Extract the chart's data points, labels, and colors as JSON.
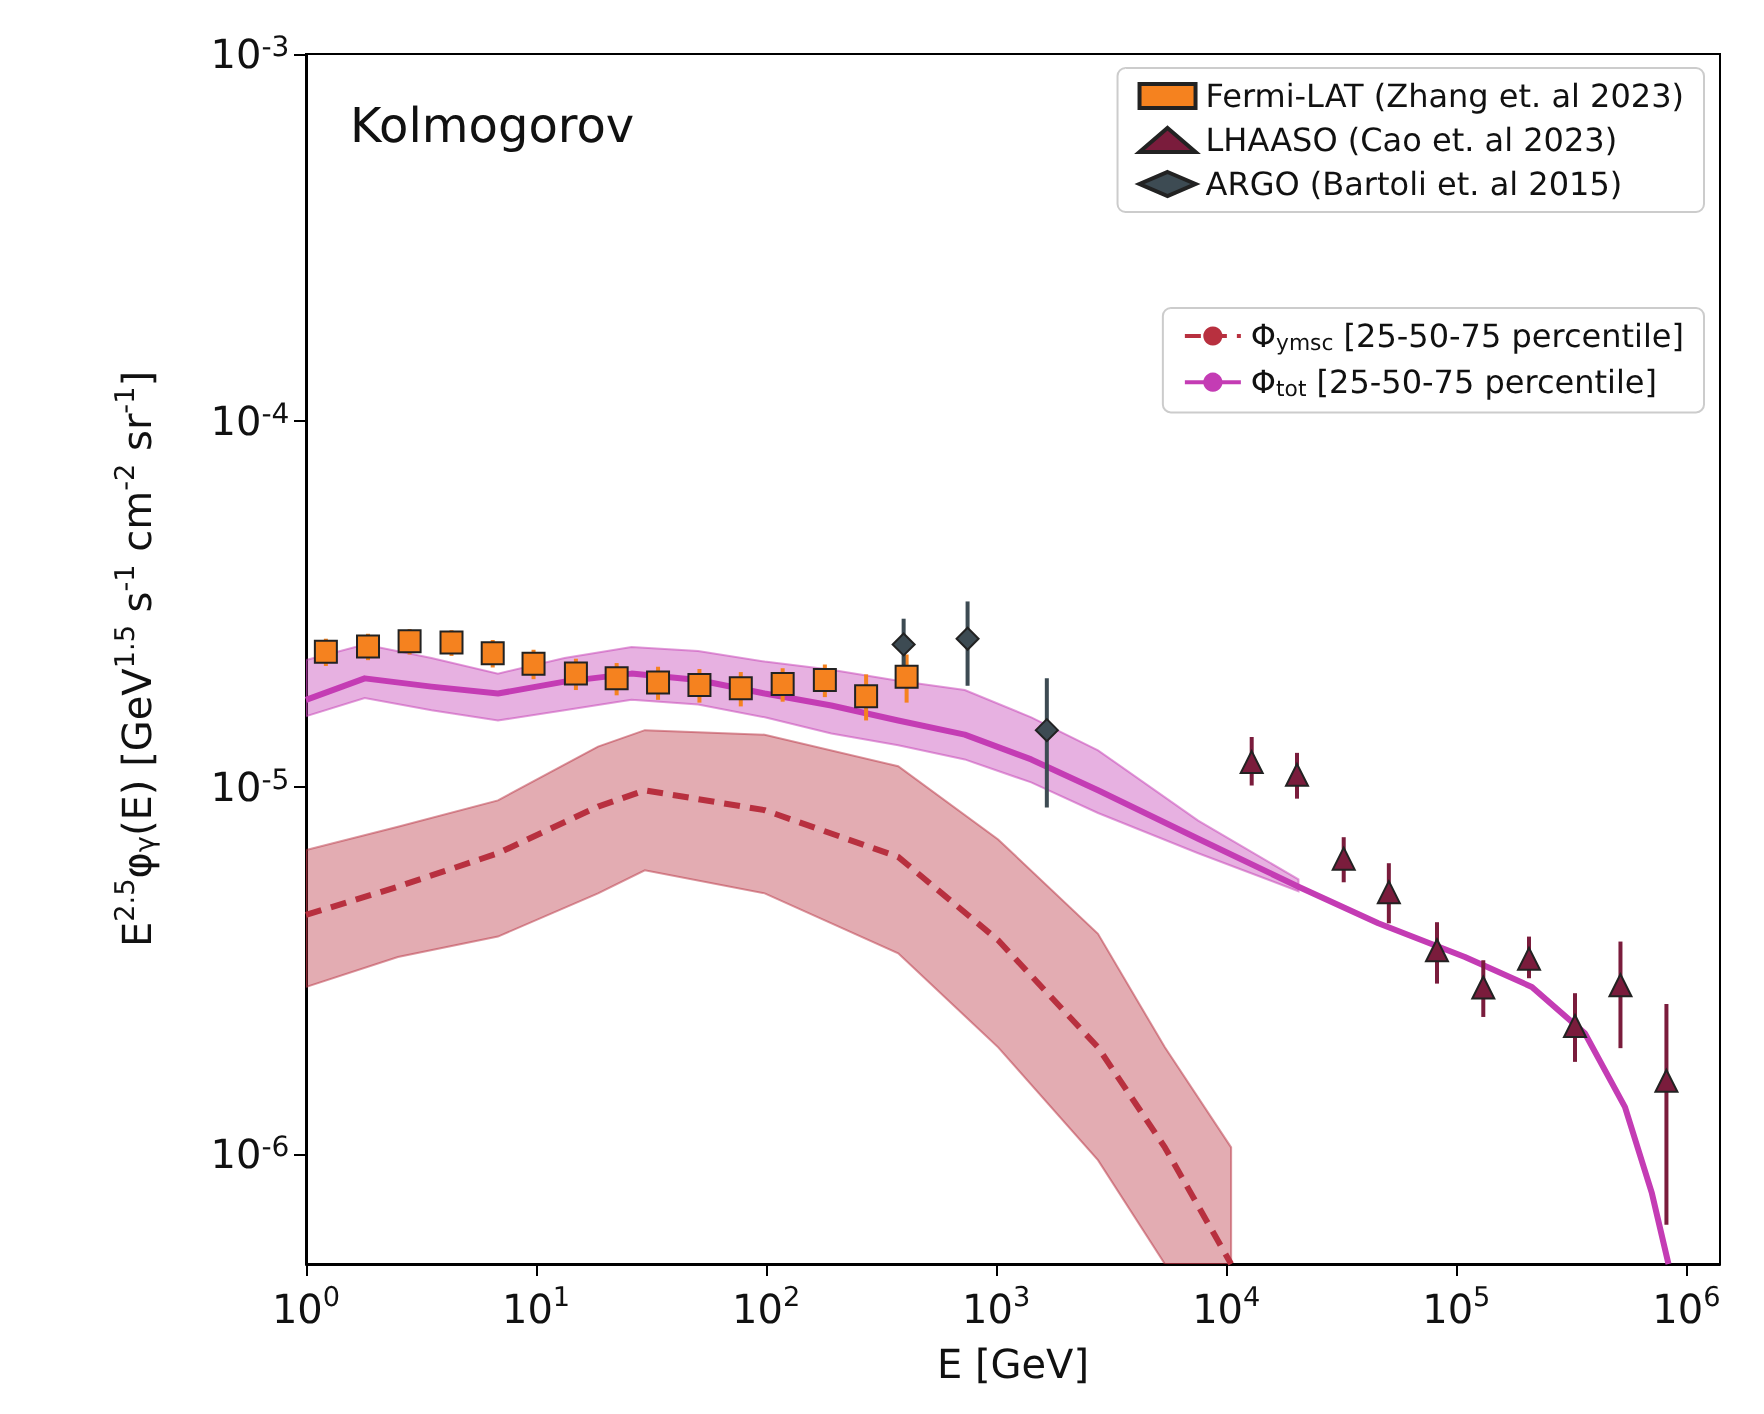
{
  "chart_data": {
    "type": "scatter",
    "title": "Kolmogorov",
    "xlabel": "E [GeV]",
    "ylabel": "E$^{2.5}$φ$_{γ}$(E) [GeV$^{1.5}$ s$^{-1}$ cm$^{-2}$ sr$^{-1}$]",
    "log": "xy",
    "legend": "top right",
    "xlim": [
      1,
      1400000
    ],
    "ylim": [
      5e-07,
      0.001
    ],
    "xticks": [
      {
        "value": 1,
        "label": "10$^{0}$"
      },
      {
        "value": 10,
        "label": "10$^{1}$"
      },
      {
        "value": 100,
        "label": "10$^{2}$"
      },
      {
        "value": 1000,
        "label": "10$^{3}$"
      },
      {
        "value": 10000,
        "label": "10$^{4}$"
      },
      {
        "value": 100000,
        "label": "10$^{5}$"
      },
      {
        "value": 1000000,
        "label": "10$^{6}$"
      }
    ],
    "yticks": [
      {
        "value": 1e-06,
        "label": "10$^{-6}$"
      },
      {
        "value": 1e-05,
        "label": "10$^{-5}$"
      },
      {
        "value": 0.0001,
        "label": "10$^{-4}$"
      },
      {
        "value": 0.001,
        "label": "10$^{-3}$"
      }
    ],
    "series": [
      {
        "name": "Fermi-LAT (Zhang et. al 2023)",
        "marker": "square",
        "color": "#f5821f",
        "x": [
          1.22,
          1.86,
          2.82,
          4.29,
          6.48,
          9.75,
          14.9,
          22.4,
          33.9,
          51.3,
          77.6,
          118,
          180,
          272,
          408
        ],
        "values": [
          2.34e-05,
          2.42e-05,
          2.5e-05,
          2.48e-05,
          2.32e-05,
          2.17e-05,
          2.04e-05,
          1.98e-05,
          1.93e-05,
          1.9e-05,
          1.86e-05,
          1.91e-05,
          1.96e-05,
          1.77e-05,
          2e-05
        ],
        "errors": [
          2e-06,
          2e-06,
          2e-06,
          2e-06,
          2e-06,
          2e-06,
          2e-06,
          2e-06,
          2e-06,
          2e-06,
          2e-06,
          2e-06,
          2e-06,
          [
            1.52e-05,
            2.03e-05
          ],
          [
            1.7e-05,
            2.3e-05
          ]
        ]
      },
      {
        "name": "LHAASO (Cao et. al 2023)",
        "marker": "triangle",
        "color": "#7a1c3c",
        "x": [
          12900,
          20300,
          32400,
          50900,
          82400,
          131000,
          207000,
          328000,
          517000,
          819000
        ],
        "values": [
          1.17e-05,
          1.08e-05,
          6.38e-06,
          5.17e-06,
          3.59e-06,
          2.84e-06,
          3.4e-06,
          2.23e-06,
          2.88e-06,
          1.58e-06
        ],
        "errors": [
          [
            1.01e-05,
            1.37e-05
          ],
          [
            9.3e-06,
            1.24e-05
          ],
          [
            5.5e-06,
            7.3e-06
          ],
          [
            4.25e-06,
            6.2e-06
          ],
          [
            2.91e-06,
            4.28e-06
          ],
          [
            2.36e-06,
            3.37e-06
          ],
          [
            3.01e-06,
            3.91e-06
          ],
          [
            1.78e-06,
            2.74e-06
          ],
          [
            1.94e-06,
            3.79e-06
          ],
          [
            6.4e-07,
            2.56e-06
          ]
        ]
      },
      {
        "name": "ARGO (Bartoli et. al 2015)",
        "marker": "diamond",
        "color": "#3d4b53",
        "x": [
          396,
          751,
          1660
        ],
        "values": [
          2.45e-05,
          2.54e-05,
          1.43e-05
        ],
        "errors": [
          [
            2.08e-05,
            2.88e-05
          ],
          [
            1.89e-05,
            3.21e-05
          ],
          [
            8.8e-06,
            1.98e-05
          ]
        ]
      },
      {
        "name": "Φ$_{ymsc}$ [25-50-75 percentile]",
        "type": "line",
        "line_style": "dashed",
        "color": "#b8303f",
        "x": [
          1,
          2.51,
          6.83,
          18.6,
          29.7,
          98.6,
          375,
          1020,
          2770,
          5410,
          10500
        ],
        "values": [
          4.48e-06,
          5.35e-06,
          6.6e-06,
          8.85e-06,
          9.8e-06,
          8.65e-06,
          6.45e-06,
          3.82e-06,
          1.95e-06,
          1.04e-06,
          5e-07
        ],
        "upper": [
          6.73e-06,
          7.8e-06,
          9.2e-06,
          1.29e-05,
          1.43e-05,
          1.39e-05,
          1.14e-05,
          7.2e-06,
          3.98e-06,
          1.95e-06,
          1.04e-06
        ],
        "lower": [
          2.85e-06,
          3.44e-06,
          3.91e-06,
          5.13e-06,
          5.93e-06,
          5.13e-06,
          3.52e-06,
          1.95e-06,
          9.6e-07,
          5e-07,
          5e-07
        ]
      },
      {
        "name": "Φ$_{tot}$ [25-50-75 percentile]",
        "type": "line",
        "line_style": "solid",
        "color": "#c43cb4",
        "x": [
          1,
          1.8,
          3.51,
          6.83,
          13.3,
          26,
          50.6,
          98.6,
          192,
          375,
          730,
          1420,
          2770,
          7550,
          20600,
          45800,
          109000,
          213000,
          362000,
          541000,
          708000,
          836000
        ],
        "values": [
          1.73e-05,
          1.98e-05,
          1.88e-05,
          1.8e-05,
          1.94e-05,
          2.04e-05,
          1.96e-05,
          1.8e-05,
          1.67e-05,
          1.52e-05,
          1.39e-05,
          1.19e-05,
          9.8e-06,
          7.23e-06,
          5.35e-06,
          4.25e-06,
          3.44e-06,
          2.85e-06,
          2.13e-06,
          1.34e-06,
          7.8e-07,
          5e-07
        ],
        "upper": [
          2.22e-05,
          2.45e-05,
          2.25e-05,
          2.04e-05,
          2.25e-05,
          2.41e-05,
          2.35e-05,
          2.2e-05,
          2.09e-05,
          1.95e-05,
          1.84e-05,
          1.55e-05,
          1.26e-05,
          8.1e-06,
          5.6e-06,
          null,
          null,
          null,
          null,
          null,
          null,
          null
        ],
        "lower": [
          1.56e-05,
          1.75e-05,
          1.62e-05,
          1.52e-05,
          1.62e-05,
          1.73e-05,
          1.68e-05,
          1.55e-05,
          1.4e-05,
          1.3e-05,
          1.19e-05,
          1.03e-05,
          8.5e-06,
          6.6e-06,
          5.2e-06,
          null,
          null,
          null,
          null,
          null,
          null,
          null
        ]
      }
    ]
  }
}
